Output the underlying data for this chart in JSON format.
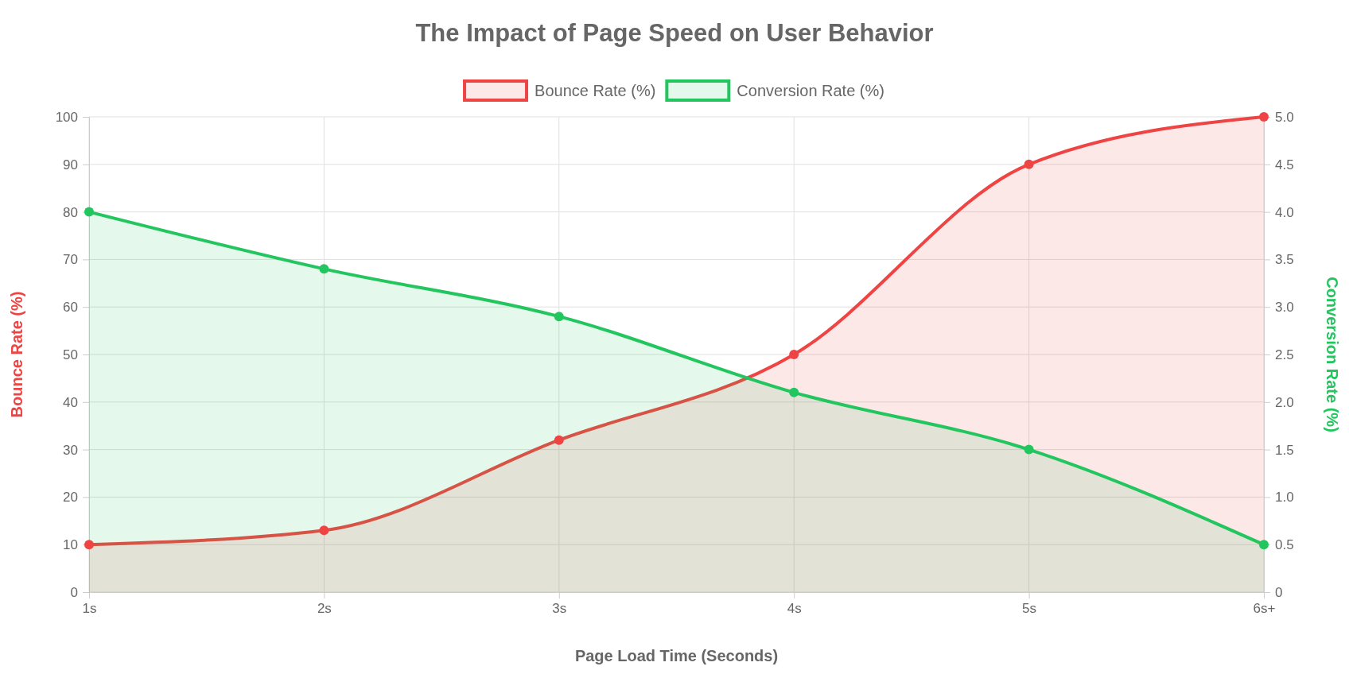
{
  "chart_data": {
    "type": "area",
    "title": "The Impact of Page Speed on User Behavior",
    "xlabel": "Page Load Time (Seconds)",
    "ylabel": "Bounce Rate (%)",
    "y2label": "Conversion Rate (%)",
    "categories": [
      "1s",
      "2s",
      "3s",
      "4s",
      "5s",
      "6s+"
    ],
    "series": [
      {
        "name": "Bounce Rate (%)",
        "color": "#ef4444",
        "values": [
          10,
          13,
          32,
          50,
          90,
          100
        ]
      },
      {
        "name": "Conversion Rate (%)",
        "color": "#22c55e",
        "axis": "y2",
        "values": [
          4.0,
          3.4,
          2.9,
          2.1,
          1.5,
          0.5
        ]
      }
    ],
    "ylim": [
      0,
      100
    ],
    "yticks": [
      0,
      10,
      20,
      30,
      40,
      50,
      60,
      70,
      80,
      90,
      100
    ],
    "y2lim": [
      0,
      5
    ],
    "y2ticks": [
      {
        "value": 0,
        "label": "0"
      },
      {
        "value": 0.5,
        "label": "0.5"
      },
      {
        "value": 1,
        "label": "1.0"
      },
      {
        "value": 1.5,
        "label": "1.5"
      },
      {
        "value": 2,
        "label": "2.0"
      },
      {
        "value": 2.5,
        "label": "2.5"
      },
      {
        "value": 3,
        "label": "3.0"
      },
      {
        "value": 3.5,
        "label": "3.5"
      },
      {
        "value": 4,
        "label": "4.0"
      },
      {
        "value": 4.5,
        "label": "4.5"
      },
      {
        "value": 5,
        "label": "5.0"
      }
    ],
    "grid": true,
    "legend": "top",
    "marker": "circle",
    "line_style": "solid"
  }
}
